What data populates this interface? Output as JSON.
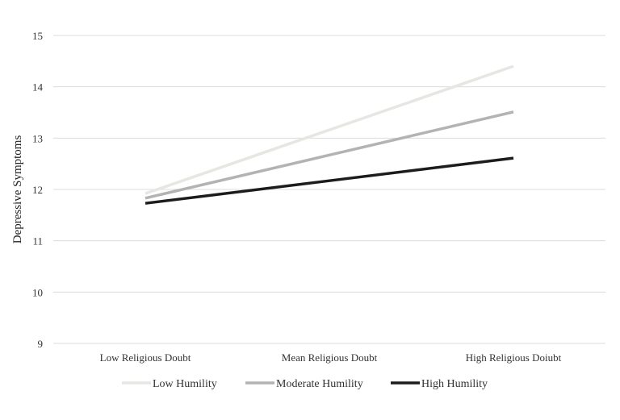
{
  "chart_data": {
    "type": "line",
    "title": "",
    "xlabel": "",
    "ylabel": "Depressive Symptoms",
    "categories": [
      "Low Religious Doubt",
      "Mean Religious Doubt",
      "High Religious Doiubt"
    ],
    "ylim": [
      9,
      15
    ],
    "yticks": [
      9,
      10,
      11,
      12,
      13,
      14,
      15
    ],
    "grid": true,
    "legend": "bottom",
    "series": [
      {
        "name": "Low Humility",
        "values": [
          11.92,
          13.16,
          14.4
        ],
        "color": "#e6e6e3"
      },
      {
        "name": "Moderate Humility",
        "values": [
          11.83,
          12.67,
          13.51
        ],
        "color": "#b3b3b3"
      },
      {
        "name": "High Humility",
        "values": [
          11.73,
          12.17,
          12.61
        ],
        "color": "#1c1c1c"
      }
    ]
  }
}
